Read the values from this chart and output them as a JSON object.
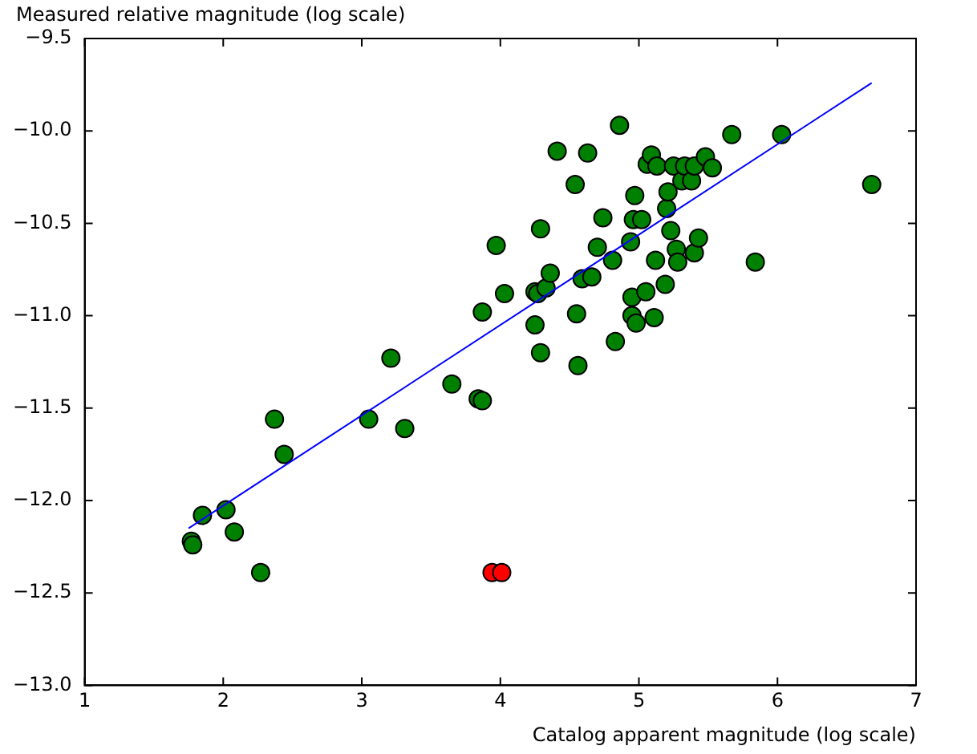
{
  "chart_data": {
    "type": "scatter",
    "xlabel": "Catalog apparent magnitude (log scale)",
    "ylabel": "Measured relative magnitude (log scale)",
    "xlim": [
      1,
      7
    ],
    "xticks": [
      1,
      2,
      3,
      4,
      5,
      6,
      7
    ],
    "ylim": [
      -13,
      -9.5
    ],
    "yticks": [
      {
        "value": -13,
        "label": "−13.0"
      },
      -12.5,
      {
        "value": -12,
        "label": "−12.0"
      },
      -11.5,
      {
        "value": -11,
        "label": "−11.0"
      },
      -10.5,
      {
        "value": -10,
        "label": "−10.0"
      },
      -9.5
    ],
    "grid": false,
    "legend": false,
    "marker": "circle",
    "series": [
      {
        "type": "scatter",
        "color": "#008000",
        "x": [
          1.77,
          1.78,
          1.85,
          2.02,
          2.08,
          2.27,
          2.37,
          2.44,
          3.05,
          3.21,
          3.31,
          3.65,
          3.84,
          3.87,
          3.87,
          3.97,
          4.03,
          4.25,
          4.25,
          4.27,
          4.29,
          4.29,
          4.33,
          4.36,
          4.41,
          4.54,
          4.55,
          4.56,
          4.59,
          4.63,
          4.66,
          4.7,
          4.74,
          4.81,
          4.83,
          4.86,
          4.94,
          4.95,
          4.95,
          4.96,
          4.97,
          4.98,
          5.02,
          5.05,
          5.06,
          5.09,
          5.11,
          5.12,
          5.13,
          5.19,
          5.2,
          5.21,
          5.23,
          5.25,
          5.27,
          5.28,
          5.31,
          5.33,
          5.38,
          5.4,
          5.4,
          5.43,
          5.48,
          5.53,
          5.67,
          5.84,
          6.03,
          6.68
        ],
        "values": [
          -12.22,
          -12.24,
          -12.08,
          -12.05,
          -12.17,
          -12.39,
          -11.56,
          -11.75,
          -11.56,
          -11.23,
          -11.61,
          -11.37,
          -11.45,
          -11.46,
          -10.98,
          -10.62,
          -10.88,
          -10.87,
          -11.05,
          -10.88,
          -10.53,
          -11.2,
          -10.85,
          -10.77,
          -10.11,
          -10.29,
          -10.99,
          -11.27,
          -10.8,
          -10.12,
          -10.79,
          -10.63,
          -10.47,
          -10.7,
          -11.14,
          -9.97,
          -10.6,
          -10.9,
          -11.0,
          -10.48,
          -10.35,
          -11.04,
          -10.48,
          -10.87,
          -10.18,
          -10.13,
          -11.01,
          -10.7,
          -10.19,
          -10.83,
          -10.42,
          -10.33,
          -10.54,
          -10.19,
          -10.64,
          -10.71,
          -10.27,
          -10.19,
          -10.27,
          -10.19,
          -10.66,
          -10.58,
          -10.14,
          -10.2,
          -10.02,
          -10.71,
          -10.02,
          -10.29
        ]
      },
      {
        "type": "scatter",
        "color": "#ff0000",
        "x": [
          3.94,
          4.01
        ],
        "values": [
          -12.39,
          -12.39
        ]
      },
      {
        "type": "line",
        "color": "#0000ff",
        "marker": "none",
        "x": [
          1.75,
          6.68
        ],
        "values": [
          -12.15,
          -9.74
        ]
      }
    ]
  }
}
